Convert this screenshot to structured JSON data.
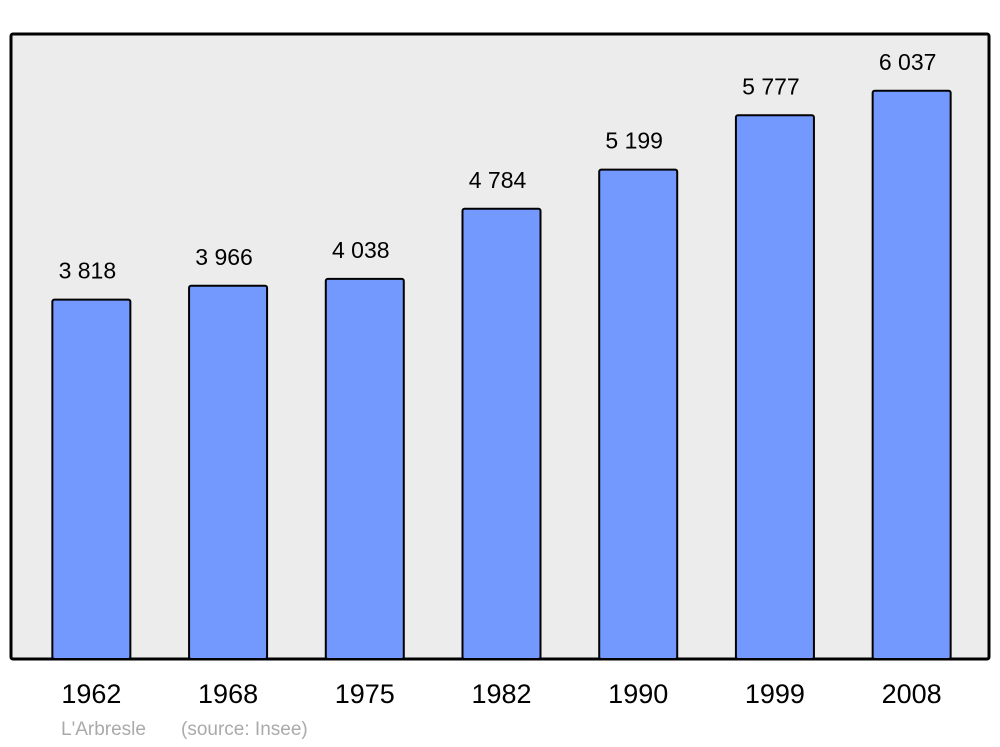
{
  "chart_data": {
    "type": "bar",
    "categories": [
      "1962",
      "1968",
      "1975",
      "1982",
      "1990",
      "1999",
      "2008"
    ],
    "values": [
      3818,
      3966,
      4038,
      4784,
      5199,
      5777,
      6037
    ],
    "value_labels": [
      "3 818",
      "3 966",
      "4 038",
      "4 784",
      "5 199",
      "5 777",
      "6 037"
    ],
    "color": "#7399ff",
    "ylim": [
      0,
      6640
    ],
    "footer": {
      "place": "L'Arbresle",
      "source": "(source: Insee)"
    }
  }
}
